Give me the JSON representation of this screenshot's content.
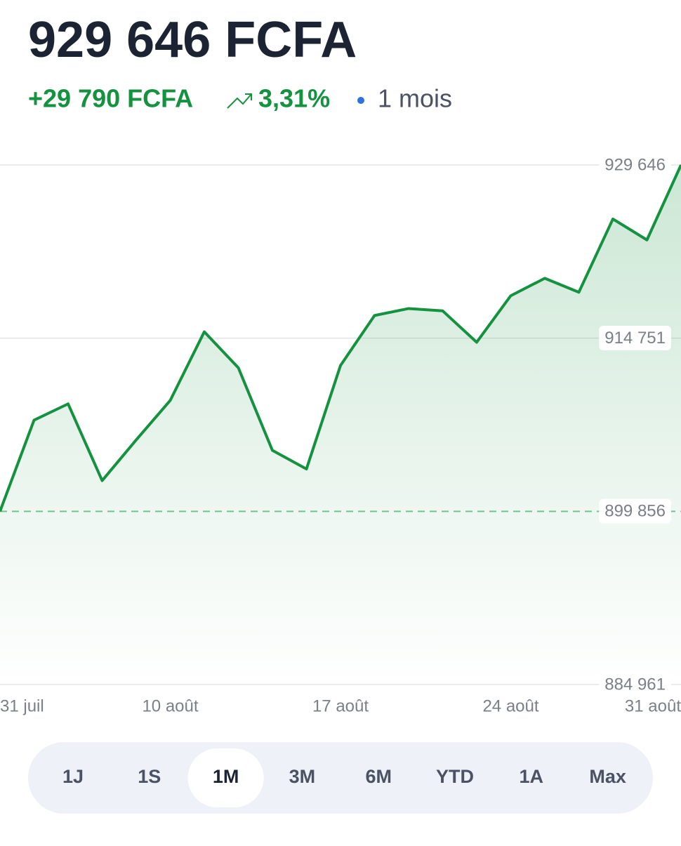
{
  "header": {
    "title": "929 646 FCFA",
    "change": "+29 790 FCFA",
    "percent": "3,31%",
    "period": "1 mois"
  },
  "chart_data": {
    "type": "area",
    "categories": [
      "31 juil",
      null,
      null,
      null,
      null,
      "10 août",
      null,
      null,
      null,
      null,
      "17 août",
      null,
      null,
      null,
      null,
      "24 août",
      null,
      null,
      null,
      null,
      "31 août"
    ],
    "values": [
      899856,
      907700,
      909100,
      902500,
      906000,
      909400,
      915300,
      912200,
      905100,
      903500,
      912400,
      916700,
      917300,
      917100,
      914400,
      918400,
      919900,
      918700,
      925000,
      923200,
      929646
    ],
    "color": "#15923f",
    "ylim": [
      884961,
      929646
    ],
    "yticks": [
      {
        "value": 884961,
        "label": "884 961"
      },
      {
        "value": 899856,
        "label": "899 856"
      },
      {
        "value": 914751,
        "label": "914 751"
      },
      {
        "value": 929646,
        "label": "929 646"
      }
    ],
    "reference": 899856,
    "grid": true
  },
  "tabs": {
    "items": [
      "1J",
      "1S",
      "1M",
      "3M",
      "6M",
      "YTD",
      "1A",
      "Max"
    ],
    "active": 2
  }
}
